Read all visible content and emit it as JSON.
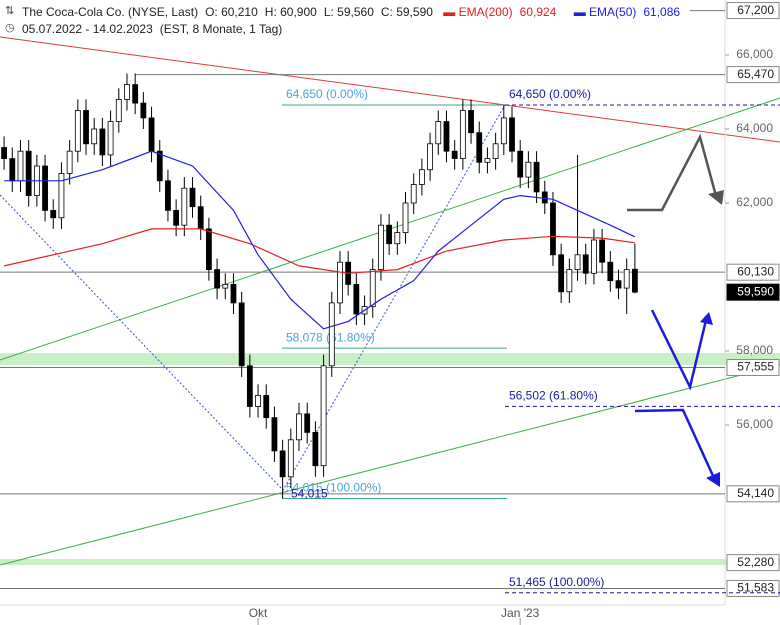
{
  "chart_data": {
    "type": "candlestick",
    "title": "The Coca-Cola Co. (NYSE, Last)",
    "ohlc_text": [
      "O: 60,210",
      "H: 60,900",
      "L: 59,560",
      "C: 59,590"
    ],
    "subtitle": "05.07.2022 - 14.02.2023",
    "subtitle_note": "(EST, 8 Monate, 1 Tag)",
    "xlim": [
      -0.5,
      88
    ],
    "ylim": [
      50.595,
      67.486
    ],
    "xticks": [
      {
        "value": 31,
        "label": "Okt"
      },
      {
        "value": 63,
        "label": "Jan '23"
      }
    ],
    "yticks": [
      {
        "value": 66,
        "label": "66,000"
      },
      {
        "value": 64,
        "label": "64,000"
      },
      {
        "value": 62,
        "label": "62,000"
      },
      {
        "value": 58,
        "label": "58,000"
      },
      {
        "value": 56,
        "label": "56,000"
      }
    ],
    "open": [
      63.5,
      63.2,
      62.6,
      63.4,
      62.2,
      63.0,
      61.8,
      61.6,
      62.8,
      63.4,
      64.5,
      63.6,
      64.0,
      63.3,
      64.2,
      64.8,
      65.2,
      64.7,
      64.3,
      63.4,
      62.6,
      61.8,
      61.4,
      62.4,
      61.9,
      61.3,
      60.2,
      59.7,
      59.8,
      59.3,
      57.6,
      56.5,
      56.8,
      56.2,
      55.3,
      54.6,
      55.6,
      56.3,
      55.8,
      54.9,
      57.6,
      59.3,
      60.4,
      59.8,
      59.0,
      59.2,
      60.2,
      61.4,
      60.9,
      61.2,
      62.0,
      62.5,
      62.9,
      63.6,
      64.2,
      63.4,
      63.2,
      64.5,
      63.9,
      63.1,
      63.2,
      63.6,
      64.3,
      63.4,
      62.7,
      63.1,
      62.3,
      62.0,
      60.6,
      59.6,
      60.2,
      60.6,
      60.1,
      61.0,
      60.4,
      59.9,
      59.7,
      60.21
    ],
    "high": [
      63.8,
      63.5,
      63.7,
      63.7,
      63.3,
      63.3,
      62.1,
      63.1,
      63.7,
      64.8,
      64.8,
      64.3,
      64.3,
      64.5,
      65.1,
      65.5,
      65.5,
      65.0,
      64.6,
      63.7,
      62.9,
      62.1,
      62.7,
      62.7,
      62.2,
      61.6,
      60.5,
      60.1,
      60.1,
      59.6,
      57.9,
      57.1,
      57.1,
      56.5,
      55.6,
      55.9,
      56.6,
      56.6,
      56.1,
      57.9,
      59.6,
      60.7,
      60.7,
      60.1,
      59.5,
      60.5,
      61.7,
      61.7,
      61.5,
      62.3,
      62.8,
      63.2,
      63.9,
      64.5,
      64.5,
      63.7,
      64.8,
      64.8,
      64.2,
      63.5,
      63.9,
      64.65,
      64.6,
      63.7,
      63.4,
      63.4,
      62.6,
      62.3,
      60.9,
      60.5,
      63.3,
      60.9,
      61.3,
      61.3,
      60.7,
      60.2,
      60.5,
      60.9
    ],
    "low": [
      62.9,
      62.3,
      62.3,
      61.9,
      61.9,
      61.5,
      61.3,
      61.3,
      62.5,
      63.1,
      63.3,
      63.3,
      63.0,
      63.0,
      63.9,
      64.5,
      64.4,
      64.0,
      63.1,
      62.3,
      61.5,
      61.1,
      61.1,
      61.6,
      61.0,
      59.9,
      59.4,
      59.4,
      59.0,
      57.3,
      56.2,
      56.2,
      55.9,
      55.0,
      54.015,
      54.3,
      55.3,
      55.5,
      54.6,
      54.6,
      57.3,
      59.0,
      59.5,
      58.7,
      58.7,
      58.9,
      59.9,
      60.6,
      60.6,
      60.9,
      61.7,
      62.2,
      62.6,
      63.3,
      63.1,
      62.9,
      62.9,
      63.6,
      62.8,
      62.8,
      62.9,
      63.3,
      63.1,
      62.4,
      62.4,
      62.0,
      61.7,
      60.3,
      59.3,
      59.3,
      59.9,
      59.8,
      59.8,
      60.1,
      59.6,
      59.4,
      59.0,
      59.56
    ],
    "close": [
      63.2,
      62.6,
      63.4,
      62.2,
      63.0,
      61.8,
      61.6,
      62.8,
      63.4,
      64.5,
      63.6,
      64.0,
      63.3,
      64.2,
      64.8,
      65.2,
      64.7,
      64.3,
      63.4,
      62.6,
      61.8,
      61.4,
      62.4,
      61.9,
      61.3,
      60.2,
      59.7,
      59.8,
      59.3,
      57.6,
      56.5,
      56.8,
      56.2,
      55.3,
      54.6,
      55.6,
      56.3,
      55.8,
      54.9,
      57.6,
      59.3,
      60.4,
      59.8,
      59.0,
      59.2,
      60.2,
      61.4,
      60.9,
      61.2,
      62.0,
      62.5,
      62.9,
      63.6,
      64.2,
      63.4,
      63.2,
      64.5,
      63.9,
      63.1,
      63.2,
      63.6,
      64.3,
      63.4,
      62.7,
      63.1,
      62.3,
      62.0,
      60.6,
      59.6,
      60.2,
      60.6,
      60.1,
      61.0,
      60.4,
      59.9,
      59.7,
      60.2,
      59.59
    ],
    "series": [
      {
        "name": "EMA(200)",
        "color": "#e02020",
        "value_label": "60,924",
        "x": [
          0,
          12,
          18,
          24,
          30,
          36,
          42,
          48,
          54,
          61,
          67,
          73,
          77
        ],
        "values": [
          60.3,
          60.9,
          61.3,
          61.3,
          60.9,
          60.3,
          60.1,
          60.2,
          60.7,
          61.0,
          61.1,
          61.05,
          60.924
        ]
      },
      {
        "name": "EMA(50)",
        "color": "#2020e0",
        "value_label": "61,086",
        "x": [
          0,
          7,
          12,
          18,
          23,
          28,
          31,
          35,
          39,
          42,
          46,
          50,
          53,
          57,
          61,
          63,
          67,
          70,
          74,
          77
        ],
        "values": [
          62.6,
          62.6,
          62.9,
          63.4,
          63.0,
          61.8,
          60.6,
          59.4,
          58.6,
          58.8,
          59.4,
          59.9,
          60.7,
          61.4,
          62.1,
          62.2,
          62.1,
          61.8,
          61.4,
          61.086
        ]
      }
    ],
    "levels": [
      {
        "value": 67.2,
        "label": "67,200",
        "line": "short"
      },
      {
        "value": 65.47,
        "label": "65,470",
        "line": "partial"
      },
      {
        "value": 60.13,
        "label": "60,130",
        "line": "full"
      },
      {
        "value": 59.59,
        "label": "59,590",
        "line": "none",
        "style": "dark"
      },
      {
        "value": 57.555,
        "label": "57,555",
        "line": "full"
      },
      {
        "value": 54.14,
        "label": "54,140",
        "line": "full"
      },
      {
        "value": 52.28,
        "label": "52,280",
        "line": "none"
      },
      {
        "value": 51.583,
        "label": "51,583",
        "line": "full"
      }
    ],
    "fib_sets": [
      {
        "color": "#4aa3df",
        "line_color": "#3aa88a",
        "dashed": false,
        "levels": [
          {
            "value": 64.65,
            "label": "64,650 (0.00%)"
          },
          {
            "value": 58.078,
            "label": "58,078 (61.80%)"
          },
          {
            "value": 54.015,
            "label": "54,015 (100.00%)"
          }
        ]
      },
      {
        "color": "#1a1aa0",
        "line_color": "#1a1aa0",
        "dashed": true,
        "levels": [
          {
            "value": 64.65,
            "label": "64,650 (0.00%)"
          },
          {
            "value": 56.502,
            "label": "56,502 (61.80%)"
          },
          {
            "value": 51.465,
            "label": "51,465 (100.00%)"
          }
        ]
      }
    ],
    "low_label": {
      "value": 54.015,
      "label": "54,015"
    }
  }
}
